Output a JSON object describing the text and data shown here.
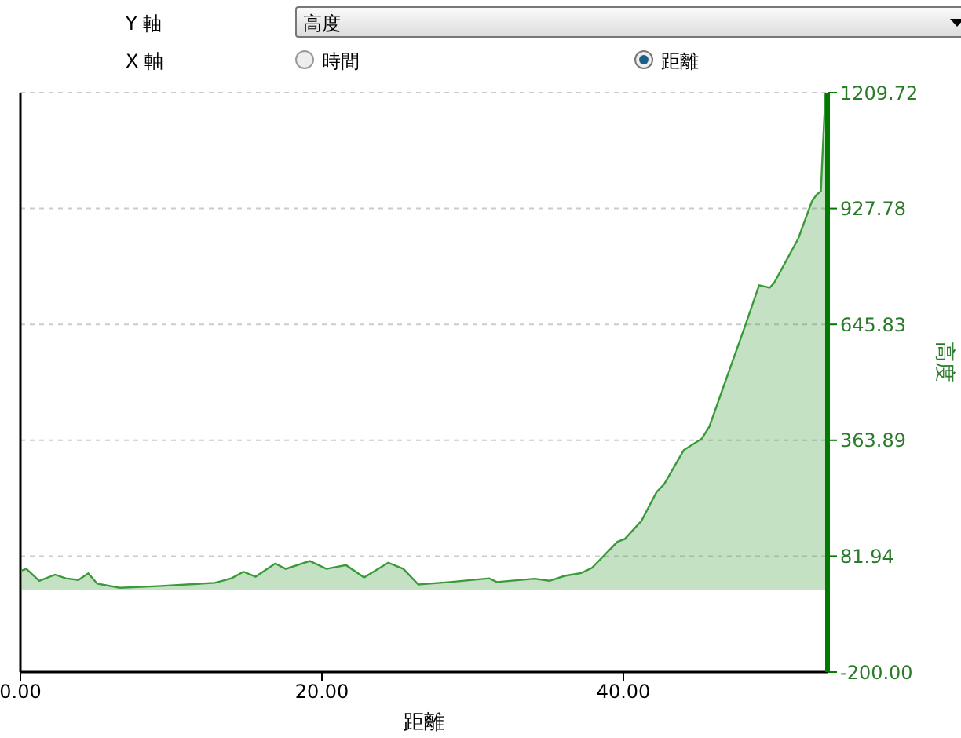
{
  "chart_data": {
    "type": "area",
    "xlabel": "距離",
    "ylabel": "高度",
    "annotations": [
      "Y 軸",
      "高度",
      "X 軸",
      "時間",
      "距離"
    ],
    "x": [
      0.1,
      0.4,
      1.25,
      2.3,
      3.0,
      3.85,
      4.5,
      5.1,
      6.6,
      9.1,
      11.5,
      12.9,
      14.0,
      14.8,
      15.6,
      16.9,
      17.6,
      19.2,
      20.3,
      21.6,
      22.8,
      24.4,
      25.4,
      26.4,
      28.5,
      31.1,
      31.6,
      34.1,
      35.1,
      36.1,
      37.2,
      37.9,
      38.6,
      39.6,
      40.1,
      41.2,
      42.2,
      42.7,
      44.0,
      45.2,
      45.7,
      46.5,
      48.1,
      49.0,
      49.7,
      50.0,
      51.6,
      52.5,
      52.8,
      53.1,
      53.2,
      53.4,
      53.5
    ],
    "series": [
      {
        "color": "#3a9a3a",
        "values": [
          47,
          51,
          22,
          37,
          28,
          24,
          40,
          15,
          5,
          9,
          14,
          17,
          28,
          44,
          32,
          64,
          51,
          70,
          51,
          60,
          30,
          66,
          51,
          13,
          19,
          28,
          19,
          27,
          22,
          34,
          41,
          53,
          79,
          117,
          124,
          168,
          238,
          257,
          340,
          368,
          397,
          480,
          645,
          741,
          735,
          747,
          855,
          945,
          961,
          970,
          1053,
          1206,
          1209
        ]
      }
    ],
    "xlim": [
      0,
      53.54
    ],
    "xticks": [
      {
        "value": 0,
        "label": "0.00"
      },
      {
        "value": 20,
        "label": "20.00"
      },
      {
        "value": 40,
        "label": "40.00"
      }
    ],
    "ylim": [
      -200,
      1209.72
    ],
    "yticks": [
      {
        "value": -200,
        "label": "-200.00"
      },
      81.94,
      363.89,
      645.83,
      927.78,
      1209.72
    ],
    "grid": "y",
    "legend": false
  }
}
